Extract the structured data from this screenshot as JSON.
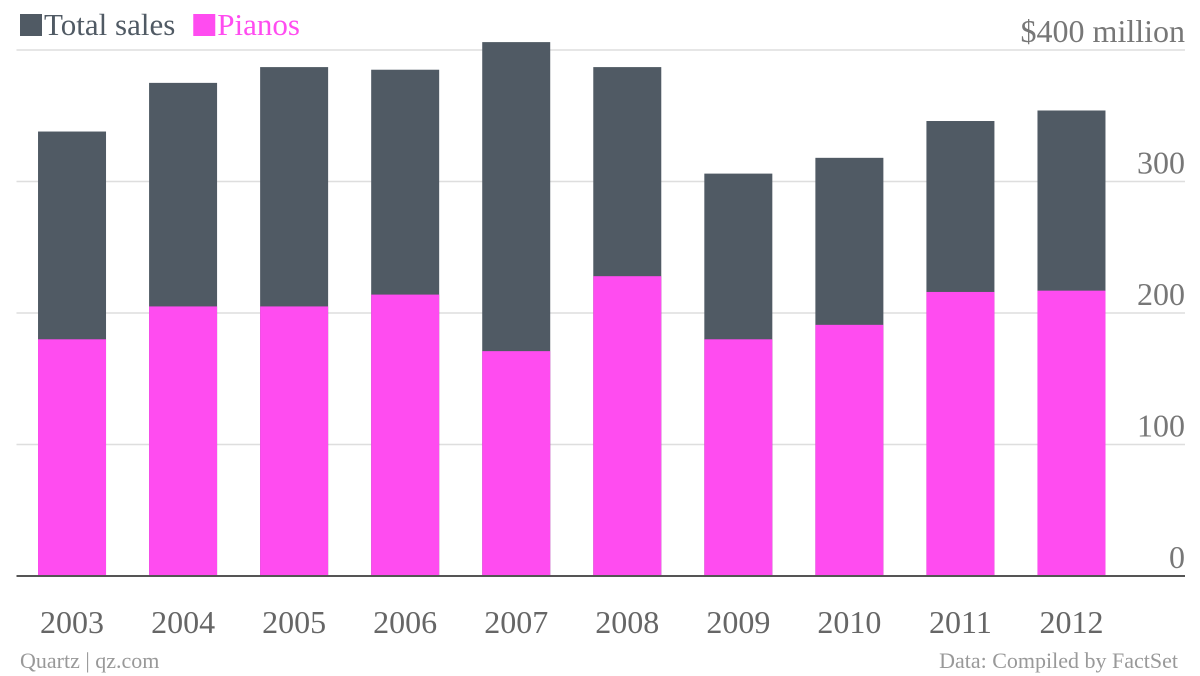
{
  "chart_data": {
    "type": "bar",
    "categories": [
      "2003",
      "2004",
      "2005",
      "2006",
      "2007",
      "2008",
      "2009",
      "2010",
      "2011",
      "2012"
    ],
    "series": [
      {
        "name": "Total sales",
        "color": "#505a64",
        "values": [
          338,
          375,
          387,
          385,
          406,
          387,
          306,
          318,
          346,
          354
        ]
      },
      {
        "name": "Pianos",
        "color": "#ff4cf0",
        "values": [
          180,
          205,
          205,
          214,
          171,
          228,
          180,
          191,
          216,
          217
        ]
      }
    ],
    "ylim": [
      0,
      410
    ],
    "yticks": [
      0,
      100,
      200,
      300,
      {
        "value": 400,
        "label": "$400 million"
      }
    ],
    "grid": true,
    "credit": "Quartz | qz.com",
    "source": "Data: Compiled by FactSet"
  }
}
